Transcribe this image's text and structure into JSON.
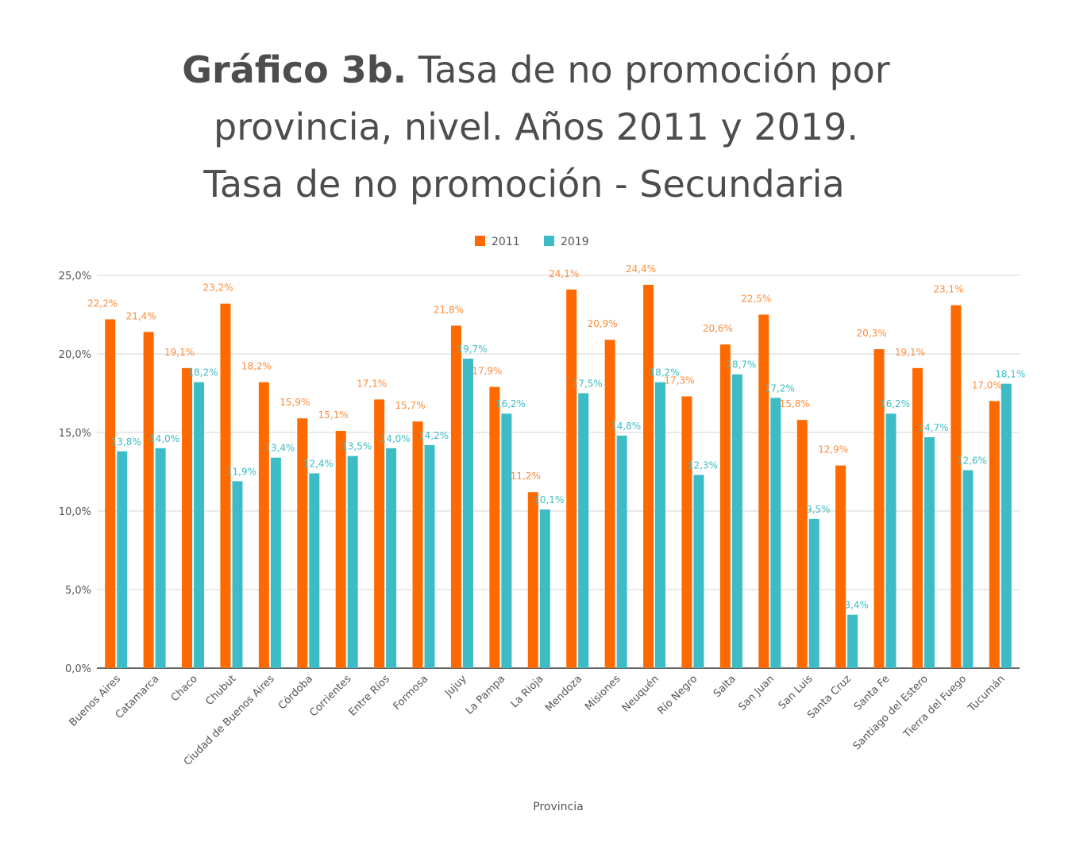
{
  "title": {
    "bold": "Gráfico 3b.",
    "line1_rest": " Tasa de no promoción por",
    "line2": "provincia, nivel. Años 2011 y 2019.",
    "line3": "Tasa de no promoción - Secundaria"
  },
  "colors": {
    "s2011": "#ff6a00",
    "s2019": "#3dbcc5",
    "label2011": "#ff8c3a",
    "label2019": "#3dbcc5",
    "grid": "#e3e3e3",
    "axis": "#333333"
  },
  "chart_data": {
    "type": "bar",
    "xlabel": "Provincia",
    "ylabel": "",
    "ylim": [
      0,
      25
    ],
    "yticks": [
      "0,0%",
      "5,0%",
      "10,0%",
      "15,0%",
      "20,0%",
      "25,0%"
    ],
    "grid": true,
    "legend_position": "top",
    "categories": [
      "Buenos Aires",
      "Catamarca",
      "Chaco",
      "Chubut",
      "Ciudad de Buenos Aires",
      "Córdoba",
      "Corrientes",
      "Entre Ríos",
      "Formosa",
      "Jujuy",
      "La Pampa",
      "La Rioja",
      "Mendoza",
      "Misiones",
      "Neuquén",
      "Río Negro",
      "Salta",
      "San Juan",
      "San Luis",
      "Santa Cruz",
      "Santa Fe",
      "Santiago del Estero",
      "Tierra del Fuego",
      "Tucumán"
    ],
    "series": [
      {
        "name": "2011",
        "values": [
          22.2,
          21.4,
          19.1,
          23.2,
          18.2,
          15.9,
          15.1,
          17.1,
          15.7,
          21.8,
          17.9,
          11.2,
          24.1,
          20.9,
          24.4,
          17.3,
          20.6,
          22.5,
          15.8,
          12.9,
          20.3,
          19.1,
          23.1,
          17.0
        ],
        "labels": [
          "22,2%",
          "21,4%",
          "19,1%",
          "23,2%",
          "18,2%",
          "15,9%",
          "15,1%",
          "17,1%",
          "15,7%",
          "21,8%",
          "17,9%",
          "11,2%",
          "24,1%",
          "20,9%",
          "24,4%",
          "17,3%",
          "20,6%",
          "22,5%",
          "15,8%",
          "12,9%",
          "20,3%",
          "19,1%",
          "23,1%",
          "17,0%"
        ]
      },
      {
        "name": "2019",
        "values": [
          13.8,
          14.0,
          18.2,
          11.9,
          13.4,
          12.4,
          13.5,
          14.0,
          14.2,
          19.7,
          16.2,
          10.1,
          17.5,
          14.8,
          18.2,
          12.3,
          18.7,
          17.2,
          9.5,
          3.4,
          16.2,
          14.7,
          12.6,
          18.1
        ],
        "labels": [
          "13,8%",
          "14,0%",
          "18,2%",
          "11,9%",
          "13,4%",
          "12,4%",
          "13,5%",
          "14,0%",
          "14,2%",
          "19,7%",
          "16,2%",
          "10,1%",
          "17,5%",
          "14,8%",
          "18,2%",
          "12,3%",
          "18,7%",
          "17,2%",
          "9,5%",
          "3,4%",
          "16,2%",
          "14,7%",
          "12,6%",
          "18,1%"
        ]
      }
    ]
  }
}
